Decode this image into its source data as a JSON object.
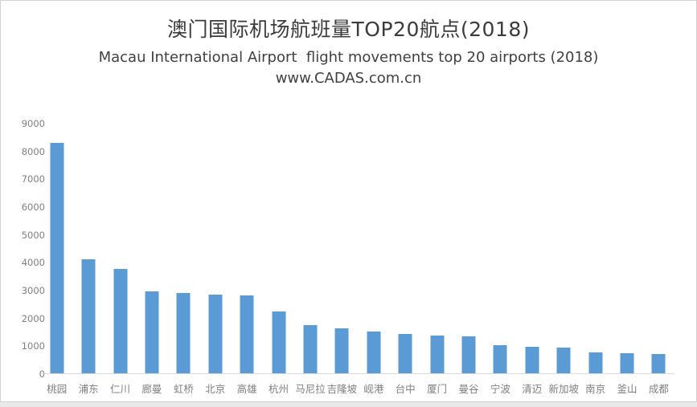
{
  "header": {
    "title_zh": "澳门国际机场航班量TOP20航点(2018)",
    "subtitle_en": "Macau International Airport  flight movements top 20 airports (2018)",
    "website": "www.CADAS.com.cn"
  },
  "chart_data": {
    "type": "bar",
    "title": "澳门国际机场航班量TOP20航点(2018)",
    "subtitle": "Macau International Airport  flight movements top 20 airports (2018)",
    "annotation": "www.CADAS.com.cn",
    "categories": [
      "桃园",
      "浦东",
      "仁川",
      "廊曼",
      "虹桥",
      "北京",
      "高雄",
      "杭州",
      "马尼拉",
      "吉隆坡",
      "岘港",
      "台中",
      "厦门",
      "曼谷",
      "宁波",
      "清迈",
      "新加坡",
      "南京",
      "釜山",
      "成都"
    ],
    "values": [
      8270,
      4110,
      3750,
      2940,
      2890,
      2820,
      2810,
      2230,
      1730,
      1610,
      1490,
      1400,
      1350,
      1330,
      1010,
      950,
      910,
      740,
      720,
      700
    ],
    "xlabel": "",
    "ylabel": "",
    "ylim": [
      0,
      9000
    ],
    "y_ticks": [
      0,
      1000,
      2000,
      3000,
      4000,
      5000,
      6000,
      7000,
      8000,
      9000
    ],
    "grid": false,
    "legend": "none",
    "bar_color": "#5B9BD5",
    "axis_line_color": "#D9D9D9",
    "tick_label_color": "#7F7F7F",
    "title_color": "#3B3B3B"
  }
}
